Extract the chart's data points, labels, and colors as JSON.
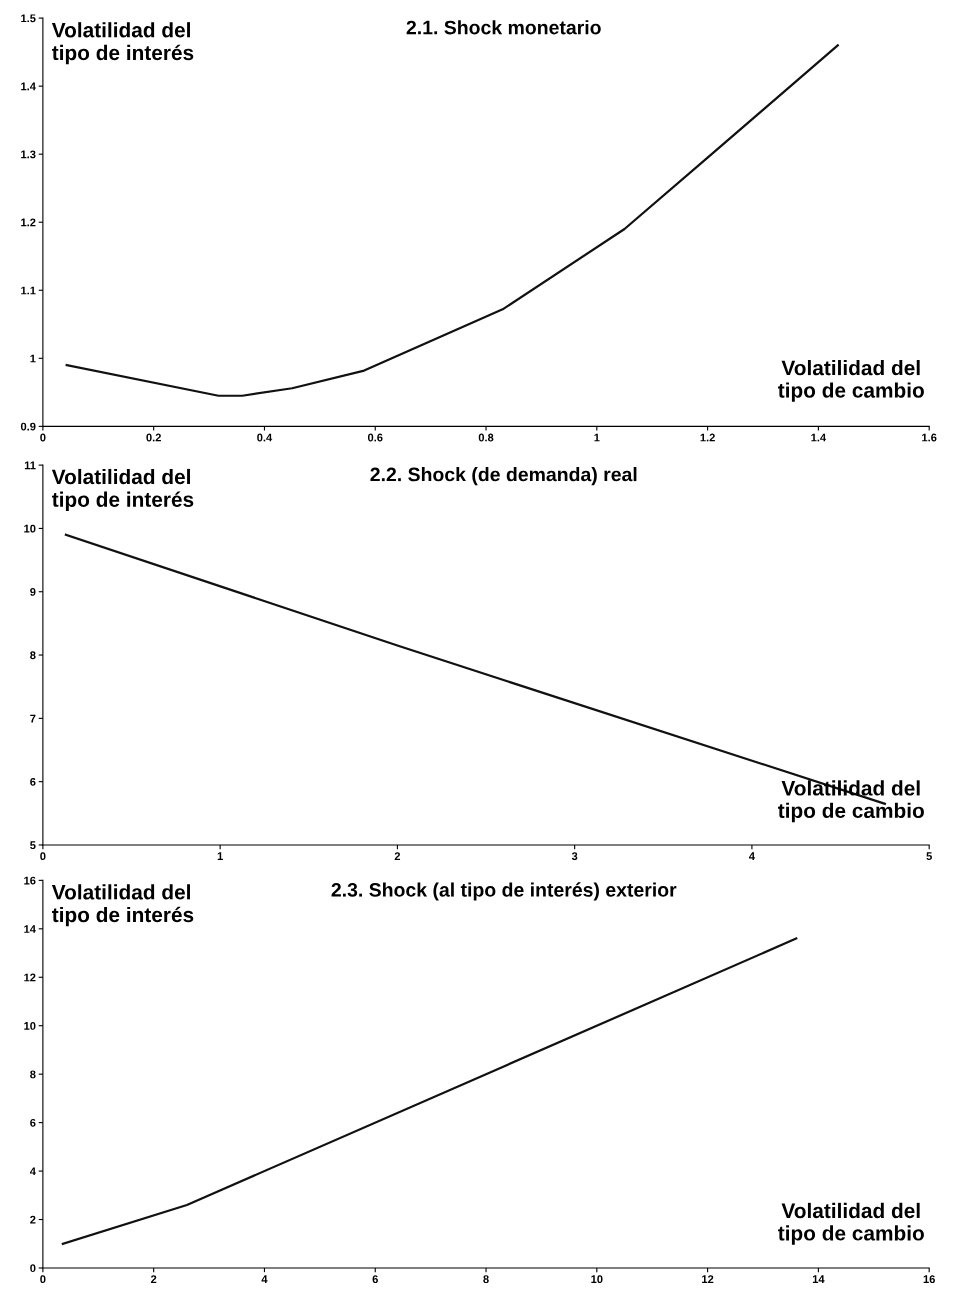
{
  "chart_data": [
    {
      "type": "line",
      "title": "2.1. Shock monetario",
      "ylabel": "Volatilidad del\ntipo de interés",
      "xlabel": "Volatilidad del\ntipo de cambio",
      "color": "#111111",
      "grid": false,
      "x": [
        0.043,
        0.317,
        0.36,
        0.45,
        0.58,
        0.83,
        1.05,
        1.2,
        1.435
      ],
      "values": [
        0.99,
        0.945,
        0.945,
        0.956,
        0.982,
        1.072,
        1.19,
        1.295,
        1.46
      ],
      "xlim": [
        0,
        1.6
      ],
      "ylim": [
        0.9,
        1.5
      ],
      "xticks": [
        0,
        0.2,
        0.4,
        0.6,
        0.8,
        1,
        1.2,
        1.4,
        1.6
      ],
      "yticks": [
        0.9,
        1,
        1.1,
        1.2,
        1.3,
        1.4,
        1.5
      ]
    },
    {
      "type": "line",
      "title": "2.2. Shock (de demanda) real",
      "ylabel": "Volatilidad del\ntipo de interés",
      "xlabel": "Volatilidad del\ntipo de cambio",
      "color": "#111111",
      "grid": false,
      "x": [
        0.13,
        2,
        4.75
      ],
      "values": [
        9.9,
        8.15,
        5.65
      ],
      "xlim": [
        0,
        5
      ],
      "ylim": [
        5,
        11
      ],
      "xticks": [
        0,
        1,
        2,
        3,
        4,
        5
      ],
      "yticks": [
        5,
        6,
        7,
        8,
        9,
        10,
        11
      ]
    },
    {
      "type": "line",
      "title": "2.3. Shock (al tipo de interés) exterior",
      "ylabel": "Volatilidad del\ntipo de interés",
      "xlabel": "Volatilidad del\ntipo de cambio",
      "color": "#111111",
      "grid": false,
      "x": [
        0.36,
        2.6,
        8.3,
        13.6
      ],
      "values": [
        1.0,
        2.6,
        8.3,
        13.6
      ],
      "xlim": [
        0,
        16
      ],
      "ylim": [
        0,
        16
      ],
      "xticks": [
        0,
        2,
        4,
        6,
        8,
        10,
        12,
        14,
        16
      ],
      "yticks": [
        0,
        2,
        4,
        6,
        8,
        10,
        12,
        14,
        16
      ]
    }
  ]
}
